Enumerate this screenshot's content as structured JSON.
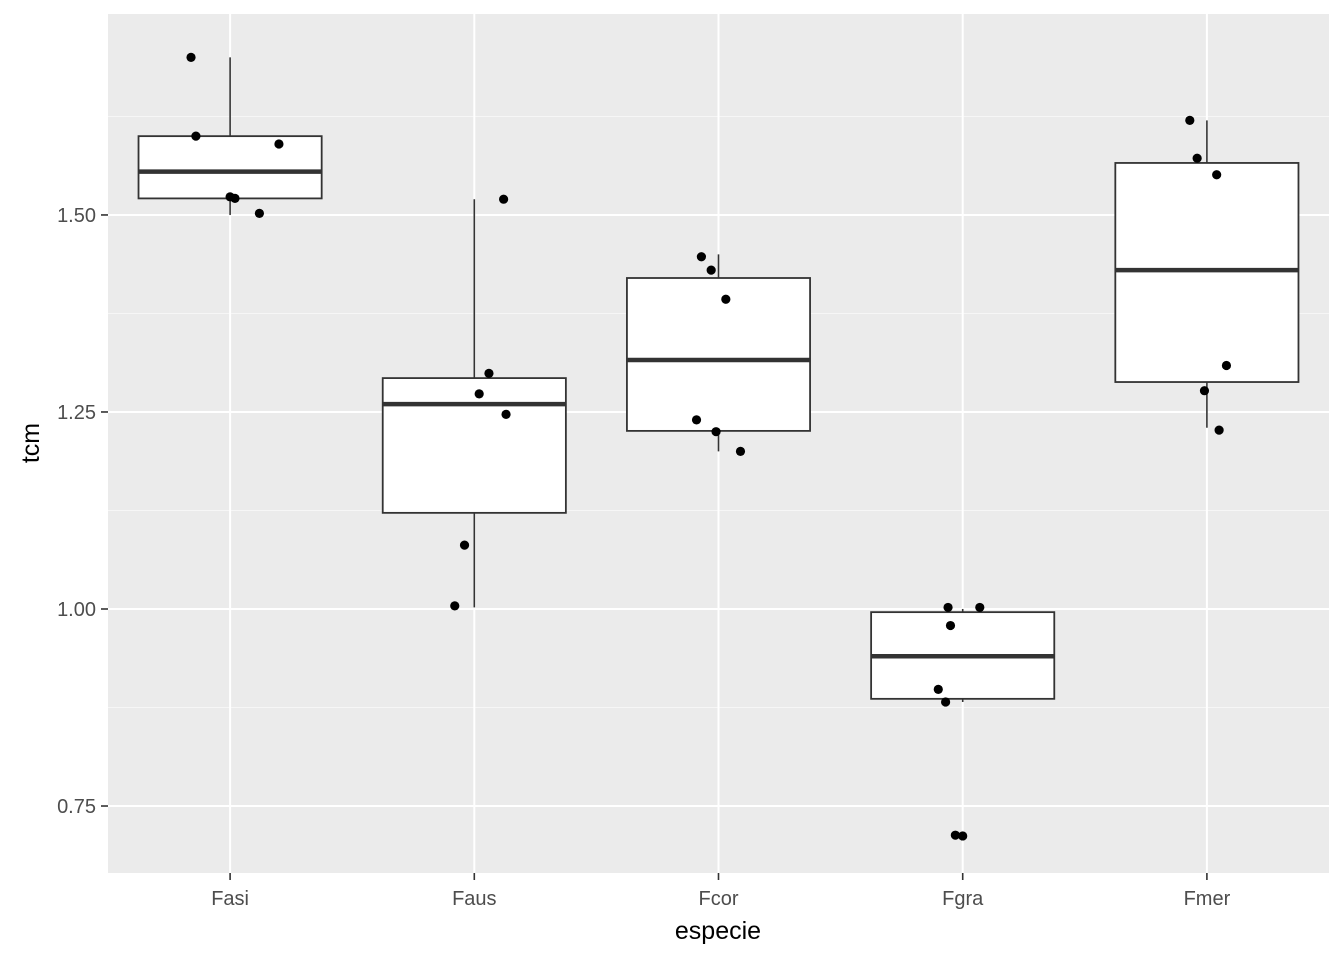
{
  "chart_data": {
    "type": "boxplot",
    "xlabel": "especie",
    "ylabel": "tcm",
    "categories": [
      "Fasi",
      "Faus",
      "Fcor",
      "Fgra",
      "Fmer"
    ],
    "ylim": [
      0.665,
      1.755
    ],
    "yticks": [
      0.75,
      1.0,
      1.25,
      1.5
    ],
    "ytick_labels": [
      "0.75",
      "1.00",
      "1.25",
      "1.50"
    ],
    "grid": true,
    "boxes": [
      {
        "category": "Fasi",
        "whisker_low": 1.5,
        "q1": 1.521,
        "median": 1.555,
        "q3": 1.6,
        "whisker_high": 1.7
      },
      {
        "category": "Faus",
        "whisker_low": 1.002,
        "q1": 1.122,
        "median": 1.26,
        "q3": 1.293,
        "whisker_high": 1.52
      },
      {
        "category": "Fcor",
        "whisker_low": 1.2,
        "q1": 1.226,
        "median": 1.316,
        "q3": 1.42,
        "whisker_high": 1.45
      },
      {
        "category": "Fgra",
        "whisker_low": 0.882,
        "q1": 0.886,
        "median": 0.94,
        "q3": 0.996,
        "whisker_high": 1.0
      },
      {
        "category": "Fmer",
        "whisker_low": 1.23,
        "q1": 1.288,
        "median": 1.43,
        "q3": 1.566,
        "whisker_high": 1.62
      }
    ],
    "points": [
      {
        "category": "Fasi",
        "values": [
          1.7,
          1.6,
          1.59,
          1.523,
          1.521,
          1.502
        ],
        "jitter": [
          -0.16,
          -0.14,
          0.2,
          0.0,
          0.02,
          0.12
        ]
      },
      {
        "category": "Faus",
        "values": [
          1.52,
          1.299,
          1.273,
          1.247,
          1.081,
          1.004
        ],
        "jitter": [
          0.12,
          0.06,
          0.02,
          0.13,
          -0.04,
          -0.08
        ]
      },
      {
        "category": "Fcor",
        "values": [
          1.447,
          1.43,
          1.393,
          1.24,
          1.225,
          1.2
        ],
        "jitter": [
          -0.07,
          -0.03,
          0.03,
          -0.09,
          -0.01,
          0.09
        ]
      },
      {
        "category": "Fgra",
        "values": [
          1.002,
          1.002,
          0.979,
          0.898,
          0.882,
          0.713,
          0.712
        ],
        "jitter": [
          -0.06,
          0.07,
          -0.05,
          -0.1,
          -0.07,
          -0.03,
          0.0
        ]
      },
      {
        "category": "Fmer",
        "values": [
          1.62,
          1.572,
          1.551,
          1.309,
          1.277,
          1.227
        ],
        "jitter": [
          -0.07,
          -0.04,
          0.04,
          0.08,
          -0.01,
          0.05
        ]
      }
    ],
    "colors": {
      "panel": "#ebebeb",
      "grid_major": "#ffffff",
      "box_fill": "#ffffff",
      "box_line": "#333333",
      "point": "#000000",
      "tick_text": "#4d4d4d"
    }
  }
}
